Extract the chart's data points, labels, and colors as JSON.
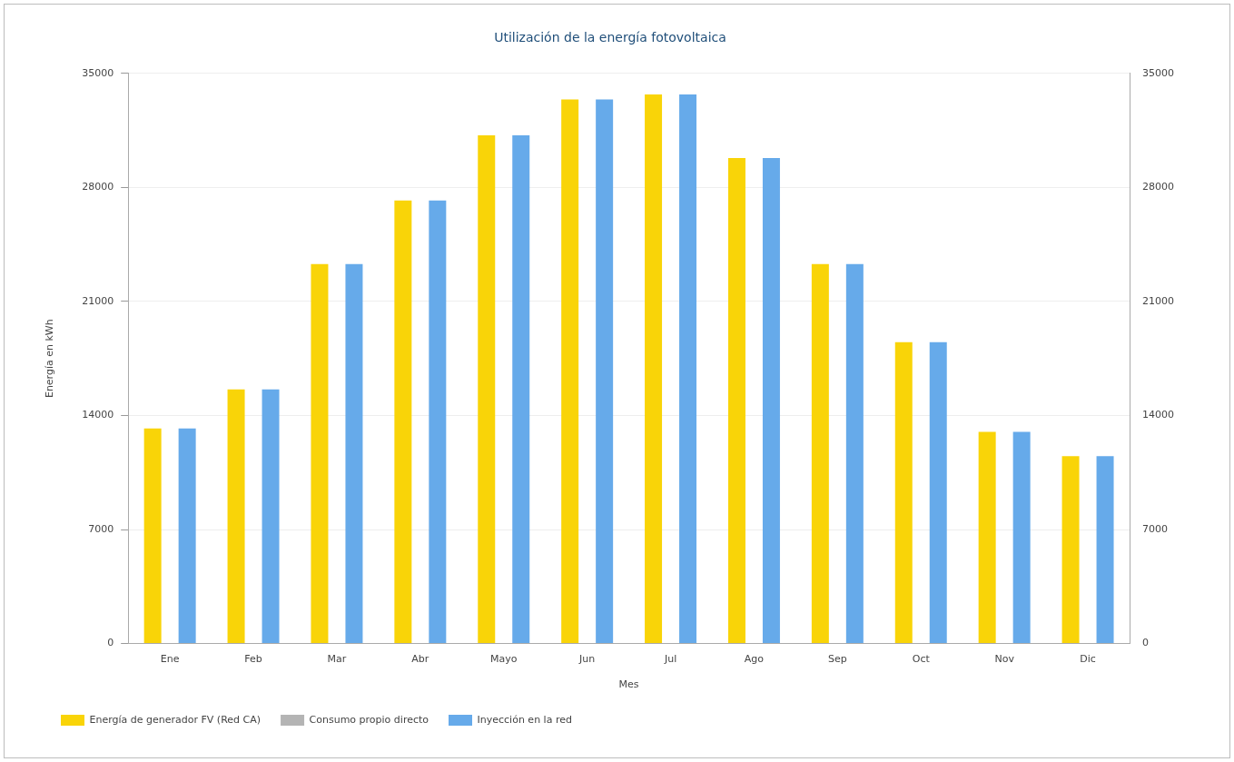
{
  "chart_data": {
    "type": "bar",
    "title": "Utilización de la energía fotovoltaica",
    "xlabel": "Mes",
    "ylabel": "Energía en kWh",
    "categories": [
      "Ene",
      "Feb",
      "Mar",
      "Abr",
      "Mayo",
      "Jun",
      "Jul",
      "Ago",
      "Sep",
      "Oct",
      "Nov",
      "Dic"
    ],
    "series": [
      {
        "name": "Energía de generador FV (Red CA)",
        "color": "#f9d408",
        "values": [
          13200,
          15600,
          23300,
          27200,
          31200,
          33400,
          33700,
          29800,
          23300,
          18500,
          13000,
          11500
        ]
      },
      {
        "name": "Consumo propio directo",
        "color": "#b4b4b4",
        "values": [
          0,
          0,
          0,
          0,
          0,
          0,
          0,
          0,
          0,
          0,
          0,
          0
        ]
      },
      {
        "name": "Inyección en la red",
        "color": "#66aaea",
        "values": [
          13200,
          15600,
          23300,
          27200,
          31200,
          33400,
          33700,
          29800,
          23300,
          18500,
          13000,
          11500
        ]
      }
    ],
    "ylim": [
      0,
      35000
    ],
    "yticks": [
      0,
      7000,
      14000,
      21000,
      28000,
      35000
    ],
    "y2lim": [
      0,
      35000
    ],
    "y2ticks": [
      0,
      7000,
      14000,
      21000,
      28000,
      35000
    ],
    "grid": "y",
    "legend": "bottom left"
  }
}
